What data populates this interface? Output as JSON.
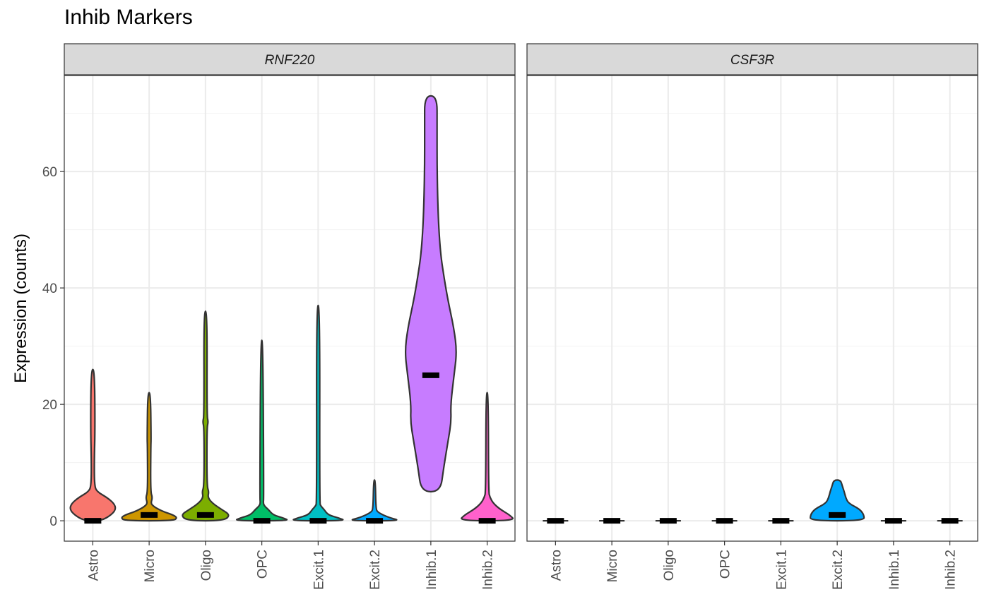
{
  "chart_data": {
    "type": "violin",
    "title": "Inhib Markers",
    "ylabel": "Expression (counts)",
    "ylim": [
      -3.5,
      76.5
    ],
    "yticks": [
      0,
      20,
      40,
      60
    ],
    "grid": true,
    "categories": [
      "Astro",
      "Micro",
      "Oligo",
      "OPC",
      "Excit.1",
      "Excit.2",
      "Inhib.1",
      "Inhib.2"
    ],
    "colors": [
      "#F8766D",
      "#CD9600",
      "#7CAE00",
      "#00BE67",
      "#00BFC4",
      "#00A9FF",
      "#C77CFF",
      "#FF61CC"
    ],
    "panels": [
      {
        "gene": "RNF220",
        "violins": [
          {
            "category": "Astro",
            "profile": [
              [
                0,
                0.3
              ],
              [
                1,
                0.65
              ],
              [
                2,
                0.82
              ],
              [
                3,
                0.75
              ],
              [
                4,
                0.5
              ],
              [
                5,
                0.15
              ],
              [
                6,
                0.06
              ],
              [
                10,
                0.05
              ],
              [
                16,
                0.08
              ],
              [
                26,
                0.06
              ]
            ],
            "median": 0
          },
          {
            "category": "Micro",
            "profile": [
              [
                0,
                0.85
              ],
              [
                0.5,
                1.0
              ],
              [
                1,
                0.85
              ],
              [
                1.5,
                0.55
              ],
              [
                2,
                0.32
              ],
              [
                2.5,
                0.15
              ],
              [
                3,
                0.06
              ],
              [
                4,
                0.12
              ],
              [
                5,
                0.05
              ],
              [
                13,
                0.06
              ],
              [
                14,
                0.07
              ],
              [
                22,
                0.05
              ]
            ],
            "median": 1
          },
          {
            "category": "Oligo",
            "profile": [
              [
                0,
                0.65
              ],
              [
                1,
                0.88
              ],
              [
                2,
                0.55
              ],
              [
                3,
                0.25
              ],
              [
                4,
                0.08
              ],
              [
                5,
                0.12
              ],
              [
                6,
                0.05
              ],
              [
                16,
                0.05
              ],
              [
                17,
                0.1
              ],
              [
                18,
                0.05
              ],
              [
                36,
                0.06
              ]
            ],
            "median": 1
          },
          {
            "category": "OPC",
            "profile": [
              [
                0,
                1.0
              ],
              [
                0.5,
                0.75
              ],
              [
                1,
                0.4
              ],
              [
                2,
                0.22
              ],
              [
                2.5,
                0.1
              ],
              [
                3,
                0.05
              ],
              [
                4,
                0.07
              ],
              [
                31,
                0.04
              ]
            ],
            "median": 0
          },
          {
            "category": "Excit.1",
            "profile": [
              [
                0,
                1.0
              ],
              [
                0.5,
                0.72
              ],
              [
                1,
                0.35
              ],
              [
                2,
                0.2
              ],
              [
                2.5,
                0.1
              ],
              [
                3,
                0.05
              ],
              [
                37,
                0.06
              ]
            ],
            "median": 0
          },
          {
            "category": "Excit.2",
            "profile": [
              [
                0,
                0.95
              ],
              [
                0.5,
                0.55
              ],
              [
                1,
                0.3
              ],
              [
                1.5,
                0.12
              ],
              [
                2,
                0.05
              ],
              [
                7,
                0.03
              ]
            ],
            "median": 0
          },
          {
            "category": "Inhib.1",
            "profile": [
              [
                5,
                0.34
              ],
              [
                9,
                0.45
              ],
              [
                14,
                0.62
              ],
              [
                17,
                0.72
              ],
              [
                20,
                0.7
              ],
              [
                25,
                0.82
              ],
              [
                29,
                0.92
              ],
              [
                33,
                0.82
              ],
              [
                38,
                0.6
              ],
              [
                42,
                0.46
              ],
              [
                46,
                0.34
              ],
              [
                52,
                0.26
              ],
              [
                60,
                0.22
              ],
              [
                68,
                0.22
              ],
              [
                73,
                0.22
              ]
            ],
            "median": 25
          },
          {
            "category": "Inhib.2",
            "profile": [
              [
                0,
                1.0
              ],
              [
                1,
                0.8
              ],
              [
                2,
                0.45
              ],
              [
                3,
                0.22
              ],
              [
                4,
                0.1
              ],
              [
                5,
                0.05
              ],
              [
                22,
                0.04
              ]
            ],
            "median": 0
          }
        ]
      },
      {
        "gene": "CSF3R",
        "violins": [
          {
            "category": "Astro",
            "profile": [
              [
                0,
                0.45
              ]
            ],
            "median": 0
          },
          {
            "category": "Micro",
            "profile": [
              [
                0,
                0.45
              ]
            ],
            "median": 0
          },
          {
            "category": "Oligo",
            "profile": [
              [
                0,
                0.45
              ]
            ],
            "median": 0
          },
          {
            "category": "OPC",
            "profile": [
              [
                0,
                0.45
              ]
            ],
            "median": 0
          },
          {
            "category": "Excit.1",
            "profile": [
              [
                0,
                0.45
              ]
            ],
            "median": 0
          },
          {
            "category": "Excit.2",
            "profile": [
              [
                0,
                0.95
              ],
              [
                1,
                0.95
              ],
              [
                2,
                0.8
              ],
              [
                3,
                0.4
              ],
              [
                4,
                0.3
              ],
              [
                5,
                0.25
              ],
              [
                6,
                0.18
              ],
              [
                7,
                0.12
              ]
            ],
            "median": 1
          },
          {
            "category": "Inhib.1",
            "profile": [
              [
                0,
                0.45
              ]
            ],
            "median": 0
          },
          {
            "category": "Inhib.2",
            "profile": [
              [
                0,
                0.45
              ]
            ],
            "median": 0
          }
        ]
      }
    ]
  }
}
